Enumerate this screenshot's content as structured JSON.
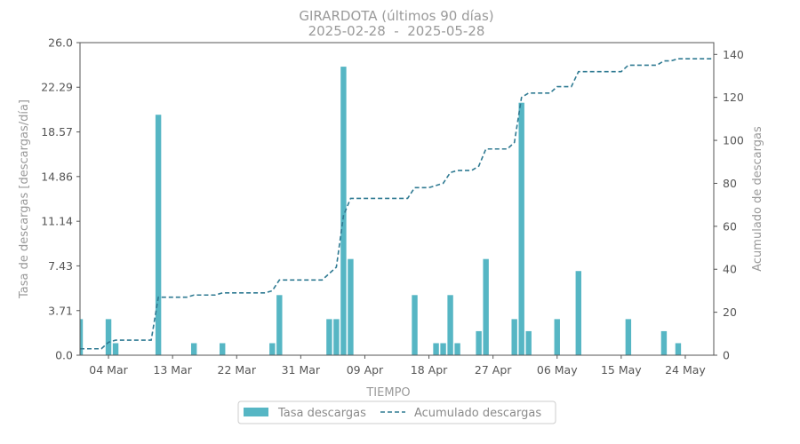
{
  "chart_data": {
    "type": "bar+line",
    "title": "GIRARDOTA (últimos 90 días)",
    "subtitle": "2025-02-28  -  2025-05-28",
    "xlabel": "TIEMPO",
    "ylabel_left": "Tasa de descargas [descargas/día]",
    "ylabel_right": "Acumulado de descargas",
    "ylim_left": [
      0,
      26.0
    ],
    "ylim_right": [
      0,
      145.5
    ],
    "xlim": [
      "2025-02-28",
      "2025-05-28"
    ],
    "y_ticks_left": [
      "0.0",
      "3.71",
      "7.43",
      "11.14",
      "14.86",
      "18.57",
      "22.29",
      "26.0"
    ],
    "y_ticks_right": [
      "0",
      "20",
      "40",
      "60",
      "80",
      "100",
      "120",
      "140"
    ],
    "x_ticks": [
      {
        "date": "2025-03-04",
        "label": "04 Mar"
      },
      {
        "date": "2025-03-13",
        "label": "13 Mar"
      },
      {
        "date": "2025-03-22",
        "label": "22 Mar"
      },
      {
        "date": "2025-03-31",
        "label": "31 Mar"
      },
      {
        "date": "2025-04-09",
        "label": "09 Apr"
      },
      {
        "date": "2025-04-18",
        "label": "18 Apr"
      },
      {
        "date": "2025-04-27",
        "label": "27 Apr"
      },
      {
        "date": "2025-05-06",
        "label": "06 May"
      },
      {
        "date": "2025-05-15",
        "label": "15 May"
      },
      {
        "date": "2025-05-24",
        "label": "24 May"
      }
    ],
    "series": [
      {
        "name": "Tasa descargas",
        "kind": "bar",
        "color": "#56b6c4",
        "points": [
          [
            "2025-02-28",
            3
          ],
          [
            "2025-03-04",
            3
          ],
          [
            "2025-03-05",
            1
          ],
          [
            "2025-03-11",
            20
          ],
          [
            "2025-03-16",
            1
          ],
          [
            "2025-03-20",
            1
          ],
          [
            "2025-03-27",
            1
          ],
          [
            "2025-03-28",
            5
          ],
          [
            "2025-04-04",
            3
          ],
          [
            "2025-04-05",
            3
          ],
          [
            "2025-04-06",
            24
          ],
          [
            "2025-04-07",
            8
          ],
          [
            "2025-04-16",
            5
          ],
          [
            "2025-04-19",
            1
          ],
          [
            "2025-04-20",
            1
          ],
          [
            "2025-04-21",
            5
          ],
          [
            "2025-04-22",
            1
          ],
          [
            "2025-04-25",
            2
          ],
          [
            "2025-04-26",
            8
          ],
          [
            "2025-04-30",
            3
          ],
          [
            "2025-05-01",
            21
          ],
          [
            "2025-05-02",
            2
          ],
          [
            "2025-05-06",
            3
          ],
          [
            "2025-05-09",
            7
          ],
          [
            "2025-05-16",
            3
          ],
          [
            "2025-05-21",
            2
          ],
          [
            "2025-05-23",
            1
          ]
        ]
      },
      {
        "name": "Acumulado descargas",
        "kind": "line",
        "style": "dashed",
        "color": "#2f7a92",
        "points": [
          [
            "2025-02-28",
            3
          ],
          [
            "2025-03-03",
            3
          ],
          [
            "2025-03-04",
            6
          ],
          [
            "2025-03-05",
            7
          ],
          [
            "2025-03-10",
            7
          ],
          [
            "2025-03-11",
            27
          ],
          [
            "2025-03-15",
            27
          ],
          [
            "2025-03-16",
            28
          ],
          [
            "2025-03-19",
            28
          ],
          [
            "2025-03-20",
            29
          ],
          [
            "2025-03-26",
            29
          ],
          [
            "2025-03-27",
            30
          ],
          [
            "2025-03-28",
            35
          ],
          [
            "2025-04-03",
            35
          ],
          [
            "2025-04-04",
            38
          ],
          [
            "2025-04-05",
            41
          ],
          [
            "2025-04-06",
            65
          ],
          [
            "2025-04-07",
            73
          ],
          [
            "2025-04-15",
            73
          ],
          [
            "2025-04-16",
            78
          ],
          [
            "2025-04-18",
            78
          ],
          [
            "2025-04-19",
            79
          ],
          [
            "2025-04-20",
            80
          ],
          [
            "2025-04-21",
            85
          ],
          [
            "2025-04-22",
            86
          ],
          [
            "2025-04-24",
            86
          ],
          [
            "2025-04-25",
            88
          ],
          [
            "2025-04-26",
            96
          ],
          [
            "2025-04-29",
            96
          ],
          [
            "2025-04-30",
            99
          ],
          [
            "2025-05-01",
            120
          ],
          [
            "2025-05-02",
            122
          ],
          [
            "2025-05-05",
            122
          ],
          [
            "2025-05-06",
            125
          ],
          [
            "2025-05-08",
            125
          ],
          [
            "2025-05-09",
            132
          ],
          [
            "2025-05-15",
            132
          ],
          [
            "2025-05-16",
            135
          ],
          [
            "2025-05-20",
            135
          ],
          [
            "2025-05-21",
            137
          ],
          [
            "2025-05-22",
            137
          ],
          [
            "2025-05-23",
            138
          ],
          [
            "2025-05-28",
            138
          ]
        ]
      }
    ],
    "legend": {
      "placement": "bottom-center",
      "entries": [
        "Tasa descargas",
        "Acumulado descargas"
      ]
    },
    "grid": false
  }
}
